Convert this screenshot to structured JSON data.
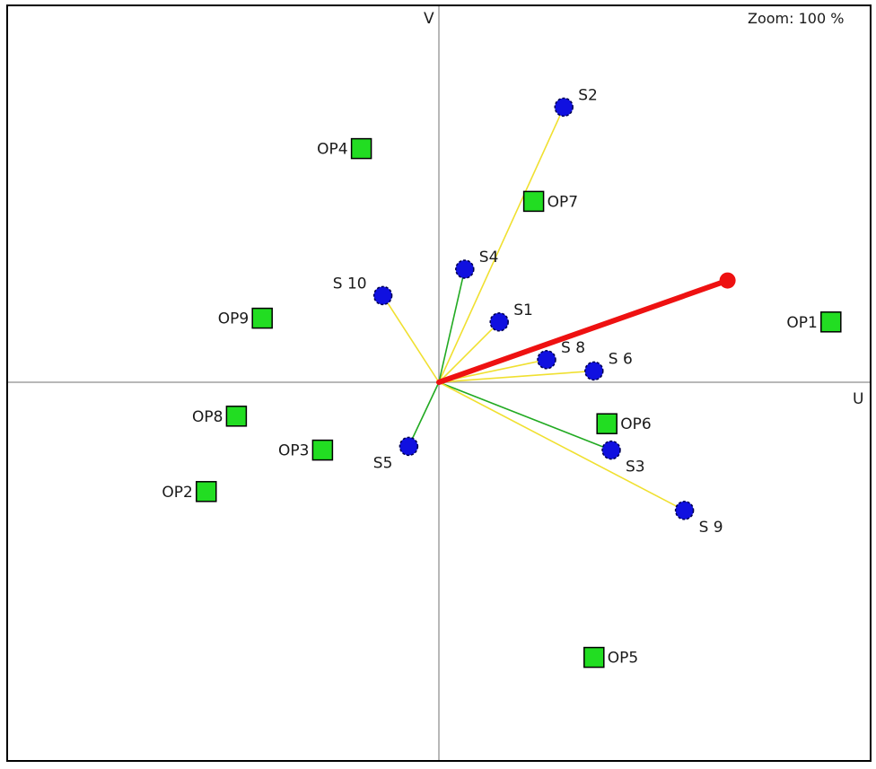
{
  "zoom_label": "Zoom: 100 %",
  "chart_data": {
    "type": "scatter",
    "title": "",
    "xlabel": "U",
    "ylabel": "V",
    "xlim": [
      -1,
      1
    ],
    "ylim": [
      -1,
      1
    ],
    "grid": false,
    "colors": {
      "station": "#1010e0",
      "option": "#22dd22",
      "vector": "#ee1111",
      "pos_link": "#f0e030",
      "neg_link": "#22aa22",
      "axis": "#a0a0a0"
    },
    "resultant": {
      "x": 0.67,
      "y": 0.27
    },
    "stations": [
      {
        "label": "S1",
        "x": 0.14,
        "y": 0.16,
        "link": "pos"
      },
      {
        "label": "S2",
        "x": 0.29,
        "y": 0.73,
        "link": "pos"
      },
      {
        "label": "S3",
        "x": 0.4,
        "y": -0.18,
        "link": "neg"
      },
      {
        "label": "S4",
        "x": 0.06,
        "y": 0.3,
        "link": "neg"
      },
      {
        "label": "S5",
        "x": -0.07,
        "y": -0.17,
        "link": "neg"
      },
      {
        "label": "S 6",
        "x": 0.36,
        "y": 0.03,
        "link": "pos"
      },
      {
        "label": "S 8",
        "x": 0.25,
        "y": 0.06,
        "link": "pos"
      },
      {
        "label": "S 9",
        "x": 0.57,
        "y": -0.34,
        "link": "pos"
      },
      {
        "label": "S 10",
        "x": -0.13,
        "y": 0.23,
        "link": "pos"
      }
    ],
    "options": [
      {
        "label": "OP1",
        "x": 0.91,
        "y": 0.16
      },
      {
        "label": "OP2",
        "x": -0.54,
        "y": -0.29
      },
      {
        "label": "OP3",
        "x": -0.27,
        "y": -0.18
      },
      {
        "label": "OP4",
        "x": -0.18,
        "y": 0.62
      },
      {
        "label": "OP5",
        "x": 0.36,
        "y": -0.73
      },
      {
        "label": "OP6",
        "x": 0.39,
        "y": -0.11
      },
      {
        "label": "OP7",
        "x": 0.22,
        "y": 0.48
      },
      {
        "label": "OP8",
        "x": -0.47,
        "y": -0.09
      },
      {
        "label": "OP9",
        "x": -0.41,
        "y": 0.17
      }
    ]
  }
}
